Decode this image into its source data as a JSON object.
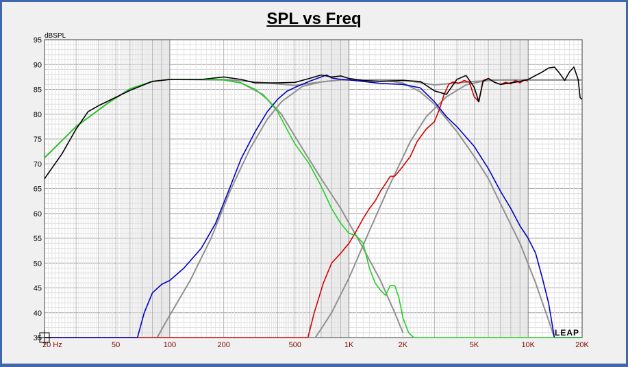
{
  "chart_data": {
    "type": "line",
    "title": "SPL vs Freq",
    "ylabel": "dBSPL",
    "xscale": "log",
    "xlim": [
      20,
      20000
    ],
    "ylim": [
      35,
      95
    ],
    "yticks": [
      95,
      90,
      85,
      80,
      75,
      70,
      65,
      60,
      55,
      50,
      45,
      40,
      35
    ],
    "xticks": [
      {
        "v": 20,
        "label": "20 Hz"
      },
      {
        "v": 50,
        "label": "50"
      },
      {
        "v": 100,
        "label": "100"
      },
      {
        "v": 200,
        "label": "200"
      },
      {
        "v": 500,
        "label": "500"
      },
      {
        "v": 1000,
        "label": "1K"
      },
      {
        "v": 2000,
        "label": "2K"
      },
      {
        "v": 5000,
        "label": "5K"
      },
      {
        "v": 10000,
        "label": "10K"
      },
      {
        "v": 20000,
        "label": "20K"
      }
    ],
    "grid": true,
    "logo": "LEAP",
    "series": [
      {
        "key": "target-total",
        "color": "#909090",
        "points": [
          [
            20,
            71.2
          ],
          [
            30,
            77.5
          ],
          [
            45,
            82.2
          ],
          [
            60,
            85.1
          ],
          [
            80,
            86.6
          ],
          [
            100,
            87
          ],
          [
            200,
            87
          ],
          [
            300,
            86.5
          ],
          [
            500,
            85.8
          ],
          [
            700,
            86.5
          ],
          [
            900,
            86.9
          ],
          [
            2000,
            86.9
          ],
          [
            3000,
            85.9
          ],
          [
            5000,
            86.6
          ],
          [
            7000,
            86.9
          ],
          [
            20000,
            86.9
          ]
        ]
      },
      {
        "key": "target-woofer",
        "color": "#909090",
        "points": [
          [
            20,
            71.2
          ],
          [
            30,
            77.5
          ],
          [
            45,
            82.2
          ],
          [
            60,
            85.1
          ],
          [
            80,
            86.6
          ],
          [
            100,
            87
          ],
          [
            200,
            86.9
          ],
          [
            250,
            86.3
          ],
          [
            330,
            84
          ],
          [
            420,
            80
          ],
          [
            500,
            75.5
          ],
          [
            700,
            67
          ],
          [
            900,
            61
          ],
          [
            1200,
            53
          ],
          [
            1500,
            46.5
          ],
          [
            1800,
            40
          ],
          [
            2000,
            36
          ]
        ]
      },
      {
        "key": "target-mid-hp",
        "color": "#909090",
        "points": [
          [
            85,
            35
          ],
          [
            100,
            39.5
          ],
          [
            130,
            46.5
          ],
          [
            170,
            55
          ],
          [
            220,
            65
          ],
          [
            280,
            73
          ],
          [
            350,
            79
          ],
          [
            420,
            82.5
          ],
          [
            550,
            85.6
          ],
          [
            700,
            86.5
          ],
          [
            900,
            86.9
          ],
          [
            1500,
            86.9
          ]
        ]
      },
      {
        "key": "target-mid-lp",
        "color": "#909090",
        "points": [
          [
            1500,
            86.9
          ],
          [
            2000,
            86.3
          ],
          [
            2500,
            84.5
          ],
          [
            3000,
            82
          ],
          [
            4000,
            76.5
          ],
          [
            5000,
            71.5
          ],
          [
            6000,
            67
          ],
          [
            7000,
            62
          ],
          [
            9000,
            54
          ],
          [
            11000,
            46
          ],
          [
            13000,
            38.5
          ],
          [
            14000,
            35
          ]
        ]
      },
      {
        "key": "target-tweeter",
        "color": "#909090",
        "points": [
          [
            650,
            35
          ],
          [
            800,
            40
          ],
          [
            1000,
            47
          ],
          [
            1300,
            56.5
          ],
          [
            1700,
            66
          ],
          [
            2200,
            74.5
          ],
          [
            2700,
            79.5
          ],
          [
            3500,
            83.5
          ],
          [
            4500,
            85.9
          ],
          [
            6000,
            86.9
          ],
          [
            20000,
            86.9
          ]
        ]
      },
      {
        "key": "measured-tweeter",
        "color": "#d00000",
        "points": [
          [
            20,
            35
          ],
          [
            590,
            35
          ],
          [
            640,
            40
          ],
          [
            720,
            46
          ],
          [
            800,
            50
          ],
          [
            900,
            52
          ],
          [
            1000,
            54
          ],
          [
            1100,
            56.5
          ],
          [
            1200,
            59
          ],
          [
            1300,
            61
          ],
          [
            1400,
            62.5
          ],
          [
            1500,
            64.5
          ],
          [
            1600,
            66
          ],
          [
            1700,
            67.5
          ],
          [
            1800,
            67.5
          ],
          [
            1900,
            68.5
          ],
          [
            2000,
            69.5
          ],
          [
            2200,
            71.5
          ],
          [
            2400,
            74.5
          ],
          [
            2700,
            77
          ],
          [
            3000,
            78.5
          ],
          [
            3200,
            81
          ],
          [
            3400,
            84
          ],
          [
            3600,
            86
          ],
          [
            3800,
            86.5
          ],
          [
            4100,
            86.2
          ],
          [
            4400,
            86.8
          ],
          [
            4700,
            86.4
          ],
          [
            5000,
            83.5
          ],
          [
            5300,
            82.5
          ],
          [
            5600,
            86.8
          ],
          [
            6000,
            87.2
          ],
          [
            6500,
            86.4
          ],
          [
            7000,
            86
          ],
          [
            7500,
            86.4
          ],
          [
            8000,
            86.1
          ],
          [
            8500,
            86.8
          ],
          [
            9000,
            86.3
          ],
          [
            9500,
            86.9
          ],
          [
            10000,
            86.7
          ]
        ]
      },
      {
        "key": "measured-mid",
        "color": "#0000c0",
        "points": [
          [
            20,
            35
          ],
          [
            66,
            35
          ],
          [
            72,
            40
          ],
          [
            80,
            44
          ],
          [
            90,
            45.7
          ],
          [
            100,
            46.5
          ],
          [
            120,
            49
          ],
          [
            150,
            53
          ],
          [
            180,
            58
          ],
          [
            210,
            64
          ],
          [
            250,
            71
          ],
          [
            300,
            76.5
          ],
          [
            350,
            80.5
          ],
          [
            400,
            83
          ],
          [
            450,
            84.6
          ],
          [
            500,
            85.4
          ],
          [
            600,
            86.6
          ],
          [
            700,
            87.5
          ],
          [
            750,
            87.9
          ],
          [
            800,
            87.3
          ],
          [
            900,
            87
          ],
          [
            1000,
            86.9
          ],
          [
            1200,
            86.6
          ],
          [
            1500,
            86.2
          ],
          [
            2000,
            86
          ],
          [
            2500,
            85.3
          ],
          [
            3000,
            82.5
          ],
          [
            3500,
            79.5
          ],
          [
            4000,
            77.5
          ],
          [
            5000,
            73.5
          ],
          [
            6000,
            69
          ],
          [
            7000,
            64.5
          ],
          [
            8000,
            61
          ],
          [
            9000,
            57.5
          ],
          [
            10000,
            55
          ],
          [
            11000,
            52
          ],
          [
            12000,
            47
          ],
          [
            13000,
            42
          ],
          [
            14000,
            35
          ],
          [
            20000,
            35
          ]
        ]
      },
      {
        "key": "measured-woofer",
        "color": "#20d020",
        "points": [
          [
            20,
            71.2
          ],
          [
            30,
            77.5
          ],
          [
            45,
            82.2
          ],
          [
            60,
            85.1
          ],
          [
            80,
            86.6
          ],
          [
            100,
            87
          ],
          [
            150,
            87
          ],
          [
            200,
            86.9
          ],
          [
            250,
            86.3
          ],
          [
            300,
            85
          ],
          [
            350,
            83
          ],
          [
            400,
            80.5
          ],
          [
            450,
            77
          ],
          [
            500,
            74
          ],
          [
            600,
            70
          ],
          [
            700,
            65.5
          ],
          [
            800,
            61
          ],
          [
            900,
            58
          ],
          [
            1000,
            56
          ],
          [
            1100,
            55.5
          ],
          [
            1200,
            54
          ],
          [
            1300,
            49
          ],
          [
            1400,
            46
          ],
          [
            1500,
            44.5
          ],
          [
            1600,
            43.5
          ],
          [
            1700,
            45.5
          ],
          [
            1800,
            45.5
          ],
          [
            1900,
            43
          ],
          [
            2000,
            39
          ],
          [
            2150,
            36
          ],
          [
            2300,
            35
          ],
          [
            20000,
            35
          ]
        ]
      },
      {
        "key": "measured-total",
        "color": "#000000",
        "points": [
          [
            20,
            67
          ],
          [
            25,
            72
          ],
          [
            30,
            77
          ],
          [
            35,
            80.5
          ],
          [
            40,
            81.7
          ],
          [
            50,
            83.4
          ],
          [
            60,
            84.8
          ],
          [
            80,
            86.6
          ],
          [
            100,
            87
          ],
          [
            150,
            87
          ],
          [
            200,
            87.5
          ],
          [
            250,
            87
          ],
          [
            300,
            86.3
          ],
          [
            400,
            86.3
          ],
          [
            500,
            86.4
          ],
          [
            600,
            87.2
          ],
          [
            700,
            87.9
          ],
          [
            800,
            87.5
          ],
          [
            900,
            87.7
          ],
          [
            1000,
            87.2
          ],
          [
            1200,
            86.8
          ],
          [
            1500,
            86.6
          ],
          [
            2000,
            86.8
          ],
          [
            2500,
            86.6
          ],
          [
            3000,
            84.7
          ],
          [
            3500,
            84
          ],
          [
            4000,
            87
          ],
          [
            4500,
            87.8
          ],
          [
            5000,
            85.4
          ],
          [
            5300,
            82.5
          ],
          [
            5600,
            86.6
          ],
          [
            6000,
            87.2
          ],
          [
            6500,
            86.4
          ],
          [
            7000,
            86
          ],
          [
            8000,
            86.3
          ],
          [
            9000,
            86.6
          ],
          [
            10000,
            87
          ],
          [
            12000,
            88.5
          ],
          [
            13000,
            89.3
          ],
          [
            14000,
            89.5
          ],
          [
            15000,
            88.2
          ],
          [
            16000,
            86.8
          ],
          [
            17000,
            88.5
          ],
          [
            18000,
            89.5
          ],
          [
            19000,
            87
          ],
          [
            19500,
            83.3
          ],
          [
            20000,
            83
          ]
        ]
      }
    ]
  }
}
